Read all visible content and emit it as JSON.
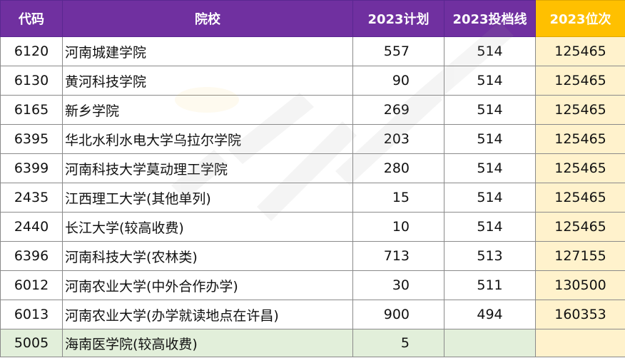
{
  "headers": [
    "代码",
    "院校",
    "2023计划",
    "2023投档线",
    "2023位次"
  ],
  "rows": [
    {
      "code": "6120",
      "name": "河南城建学院",
      "plan": "557",
      "line": "514",
      "rank": "125465"
    },
    {
      "code": "6130",
      "name": "黄河科技学院",
      "plan": "90",
      "line": "514",
      "rank": "125465"
    },
    {
      "code": "6165",
      "name": "新乡学院",
      "plan": "269",
      "line": "514",
      "rank": "125465"
    },
    {
      "code": "6395",
      "name": "华北水利水电大学乌拉尔学院",
      "plan": "203",
      "line": "514",
      "rank": "125465"
    },
    {
      "code": "6399",
      "name": "河南科技大学莫动理工学院",
      "plan": "280",
      "line": "514",
      "rank": "125465"
    },
    {
      "code": "2435",
      "name": "江西理工大学(其他单列)",
      "plan": "15",
      "line": "514",
      "rank": "125465"
    },
    {
      "code": "2440",
      "name": "长江大学(较高收费)",
      "plan": "10",
      "line": "514",
      "rank": "125465"
    },
    {
      "code": "6396",
      "name": "河南科技大学(农林类)",
      "plan": "713",
      "line": "513",
      "rank": "127155"
    },
    {
      "code": "6012",
      "name": "河南农业大学(中外合作办学)",
      "plan": "30",
      "line": "511",
      "rank": "130500"
    },
    {
      "code": "6013",
      "name": "河南农业大学(办学就读地点在许昌)",
      "plan": "900",
      "line": "494",
      "rank": "160353"
    },
    {
      "code": "5005",
      "name": "海南医学院(较高收费)",
      "plan": "5",
      "line": "",
      "rank": ""
    }
  ],
  "colors": {
    "header": "#7030a0",
    "header_highlight": "#ffc000",
    "rank_fill": "#fff2cc",
    "last_row_fill": "#e2efda"
  }
}
